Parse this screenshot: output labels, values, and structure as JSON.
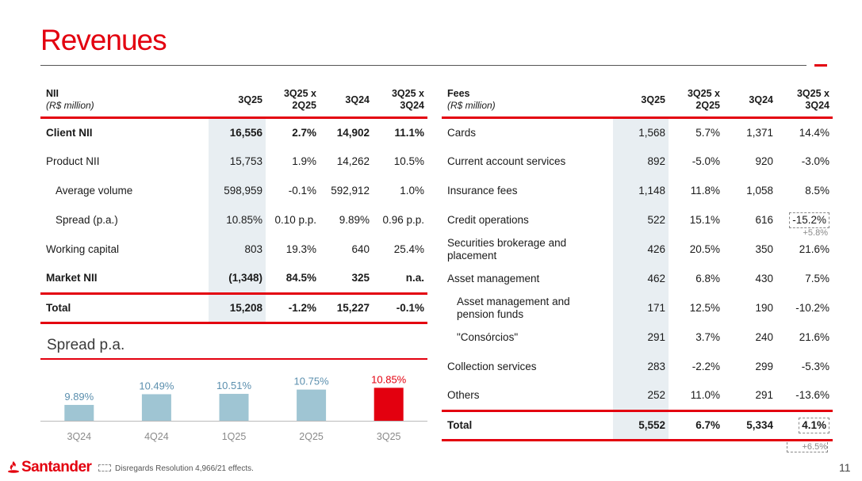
{
  "title": "Revenues",
  "nii": {
    "header": {
      "label": "NII",
      "unit": "(R$ million)",
      "c1": "3Q25",
      "c2a": "3Q25 x",
      "c2b": "2Q25",
      "c3": "3Q24",
      "c4a": "3Q25 x",
      "c4b": "3Q24"
    },
    "rows": [
      {
        "label": "Client NII",
        "v1": "16,556",
        "v2": "2.7%",
        "v3": "14,902",
        "v4": "11.1%"
      },
      {
        "label": "Product NII",
        "v1": "15,753",
        "v2": "1.9%",
        "v3": "14,262",
        "v4": "10.5%"
      },
      {
        "label": "Average volume",
        "v1": "598,959",
        "v2": "-0.1%",
        "v3": "592,912",
        "v4": "1.0%"
      },
      {
        "label": "Spread (p.a.)",
        "v1": "10.85%",
        "v2": "0.10 p.p.",
        "v3": "9.89%",
        "v4": "0.96 p.p."
      },
      {
        "label": "Working capital",
        "v1": "803",
        "v2": "19.3%",
        "v3": "640",
        "v4": "25.4%"
      },
      {
        "label": "Market NII",
        "v1": "(1,348)",
        "v2": "84.5%",
        "v3": "325",
        "v4": "n.a."
      },
      {
        "label": "Total",
        "v1": "15,208",
        "v2": "-1.2%",
        "v3": "15,227",
        "v4": "-0.1%"
      }
    ]
  },
  "fees": {
    "header": {
      "label": "Fees",
      "unit": "(R$ million)",
      "c1": "3Q25",
      "c2a": "3Q25 x",
      "c2b": "2Q25",
      "c3": "3Q24",
      "c4a": "3Q25 x",
      "c4b": "3Q24"
    },
    "rows": [
      {
        "label": "Cards",
        "v1": "1,568",
        "v2": "5.7%",
        "v3": "1,371",
        "v4": "14.4%"
      },
      {
        "label": "Current account services",
        "v1": "892",
        "v2": "-5.0%",
        "v3": "920",
        "v4": "-3.0%"
      },
      {
        "label": "Insurance fees",
        "v1": "1,148",
        "v2": "11.8%",
        "v3": "1,058",
        "v4": "8.5%"
      },
      {
        "label": "Credit operations",
        "v1": "522",
        "v2": "15.1%",
        "v3": "616",
        "v4": "-15.2%",
        "adj": "+5.8%"
      },
      {
        "label": "Securities brokerage and placement",
        "v1": "426",
        "v2": "20.5%",
        "v3": "350",
        "v4": "21.6%"
      },
      {
        "label": "Asset management",
        "v1": "462",
        "v2": "6.8%",
        "v3": "430",
        "v4": "7.5%"
      },
      {
        "label": "Asset management and pension funds",
        "v1": "171",
        "v2": "12.5%",
        "v3": "190",
        "v4": "-10.2%"
      },
      {
        "label": "\"Consórcios\"",
        "v1": "291",
        "v2": "3.7%",
        "v3": "240",
        "v4": "21.6%"
      },
      {
        "label": "Collection services",
        "v1": "283",
        "v2": "-2.2%",
        "v3": "299",
        "v4": "-5.3%"
      },
      {
        "label": "Others",
        "v1": "252",
        "v2": "11.0%",
        "v3": "291",
        "v4": "-13.6%"
      },
      {
        "label": "Total",
        "v1": "5,552",
        "v2": "6.7%",
        "v3": "5,334",
        "v4": "4.1%",
        "adj": "+6.5%"
      }
    ]
  },
  "spread_title": "Spread p.a.",
  "chart_data": {
    "type": "bar",
    "title": "Spread p.a.",
    "categories": [
      "3Q24",
      "4Q24",
      "1Q25",
      "2Q25",
      "3Q25"
    ],
    "values": [
      9.89,
      10.49,
      10.51,
      10.75,
      10.85
    ],
    "labels": [
      "9.89%",
      "10.49%",
      "10.51%",
      "10.75%",
      "10.85%"
    ],
    "ylim": [
      9.0,
      11.0
    ],
    "colors": {
      "normal": "#9fc5d3",
      "highlight": "#e3000f",
      "label": "#5b8fae",
      "highlight_label": "#e3000f"
    }
  },
  "footer": {
    "brand": "Santander",
    "legend": "Disregards Resolution 4,966/21 effects.",
    "page": "11"
  },
  "colors": {
    "accent": "#e3000f",
    "shade": "#e8eef2"
  }
}
